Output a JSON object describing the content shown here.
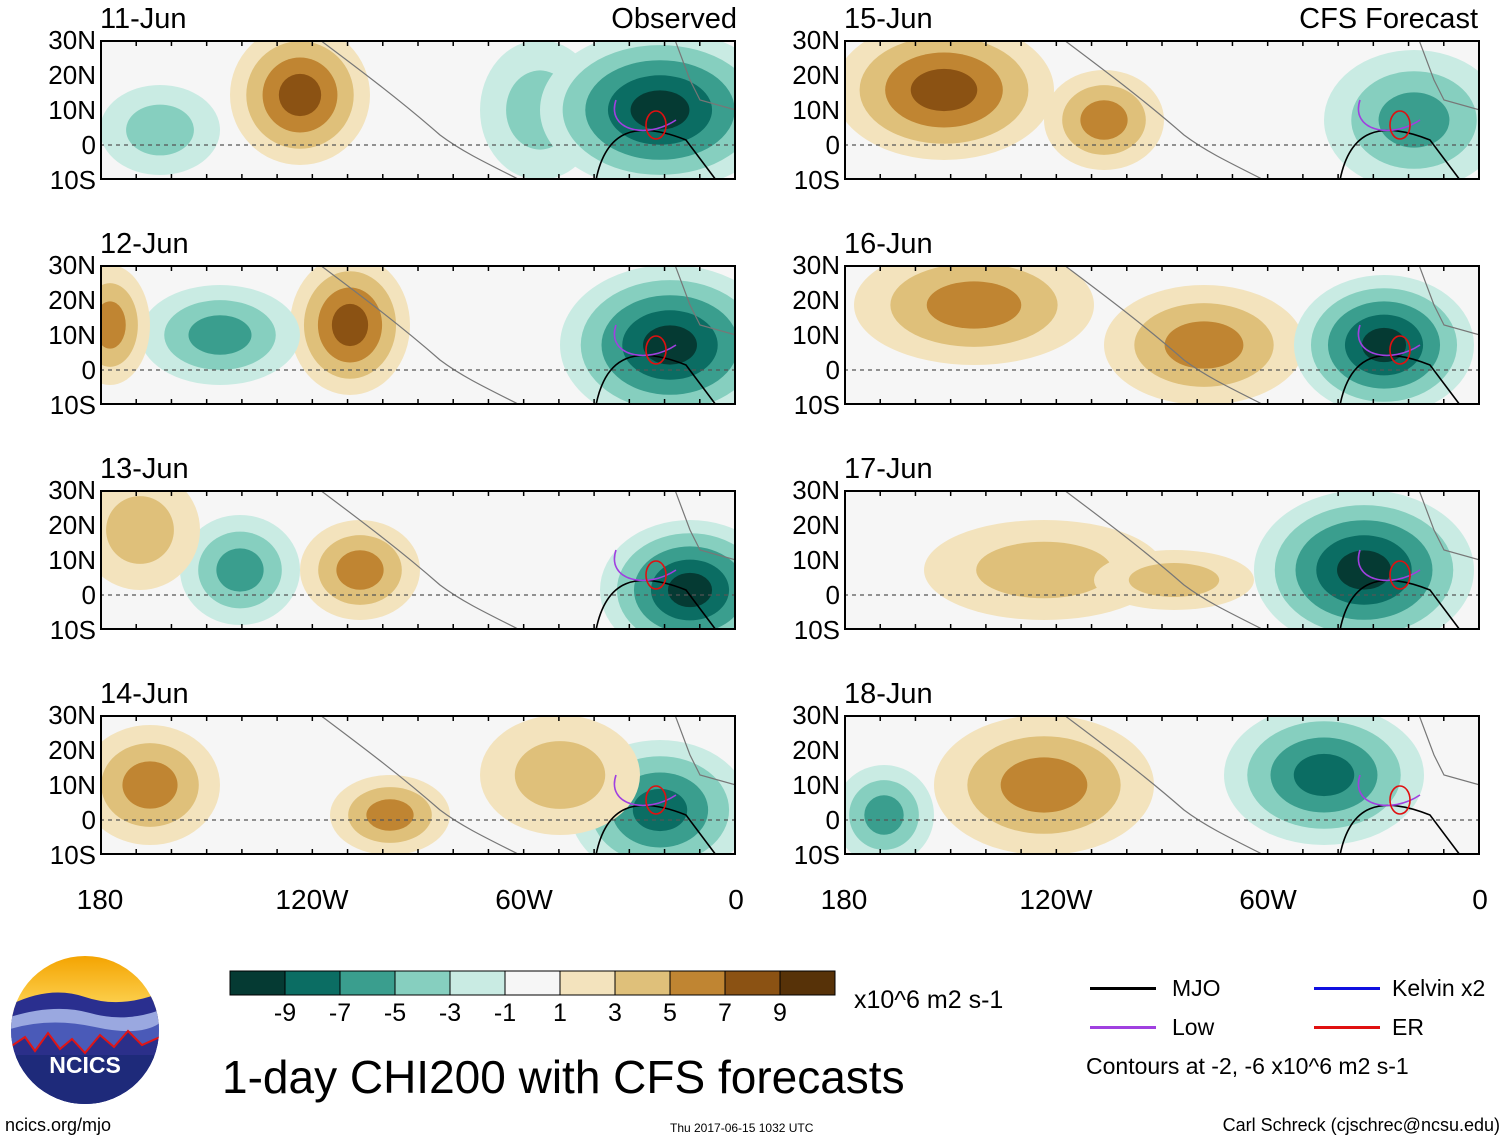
{
  "panels_left": [
    {
      "date": "11-Jun",
      "tag": "Observed"
    },
    {
      "date": "12-Jun",
      "tag": ""
    },
    {
      "date": "13-Jun",
      "tag": ""
    },
    {
      "date": "14-Jun",
      "tag": ""
    }
  ],
  "panels_right": [
    {
      "date": "15-Jun",
      "tag": "CFS Forecast"
    },
    {
      "date": "16-Jun",
      "tag": ""
    },
    {
      "date": "17-Jun",
      "tag": ""
    },
    {
      "date": "18-Jun",
      "tag": ""
    }
  ],
  "lat_labels": [
    "30N",
    "20N",
    "10N",
    "0",
    "10S"
  ],
  "lon_labels": [
    "180",
    "120W",
    "60W",
    "0"
  ],
  "colorbar": {
    "colors": [
      "#053a33",
      "#0b6d63",
      "#3a9e8e",
      "#86cfbf",
      "#c9ebe3",
      "#f6f6f6",
      "#f3e3bd",
      "#dfc07a",
      "#c08532",
      "#8b5213",
      "#573208"
    ],
    "labels": [
      "-9",
      "-7",
      "-5",
      "-3",
      "-1",
      "1",
      "3",
      "5",
      "7",
      "9"
    ]
  },
  "units": "x10^6 m2 s-1",
  "legend": [
    {
      "name": "MJO",
      "color": "#000000"
    },
    {
      "name": "Kelvin x2",
      "color": "#1010e0"
    },
    {
      "name": "Low",
      "color": "#a040e0"
    },
    {
      "name": "ER",
      "color": "#e01010"
    }
  ],
  "contours_note": "Contours at -2, -6 x10^6 m2 s-1",
  "title": "1-day CHI200 with CFS forecasts",
  "logo_text": "NCICS",
  "footer": {
    "left": "ncics.org/mjo",
    "middle": "Thu 2017-06-15 1032 UTC",
    "right": "Carl Schreck (cjschrec@ncsu.edu)"
  }
}
